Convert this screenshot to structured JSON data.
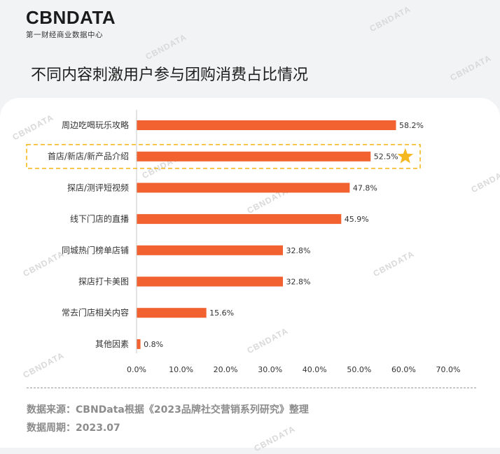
{
  "brand": {
    "logo_text": "CBNDATA",
    "tagline": "第一财经商业数据中心"
  },
  "header": {
    "title": "不同内容刺激用户参与团购消费占比情况"
  },
  "footer": {
    "source": "数据来源：CBNData根据《2023品牌社交营销系列研究》整理",
    "period": "数据周期：2023.07"
  },
  "colors": {
    "bar": "#f26130",
    "highlight": "#f5b91f",
    "axis": "#c8c8c8",
    "text": "#333333"
  },
  "chart_data": {
    "type": "bar",
    "orientation": "horizontal",
    "categories": [
      "周边吃喝玩乐攻略",
      "首店/新店/新产品介绍",
      "探店/测评短视频",
      "线下门店的直播",
      "同城热门榜单店铺",
      "探店打卡美图",
      "常去门店相关内容",
      "其他因素"
    ],
    "values": [
      58.2,
      52.5,
      47.8,
      45.9,
      32.8,
      32.8,
      15.6,
      0.8
    ],
    "value_labels": [
      "58.2%",
      "52.5%",
      "47.8%",
      "45.9%",
      "32.8%",
      "32.8%",
      "15.6%",
      "0.8%"
    ],
    "xlim": [
      0,
      70
    ],
    "x_ticks": [
      0,
      10,
      20,
      30,
      40,
      50,
      60,
      70
    ],
    "x_tick_labels": [
      "0.0%",
      "10.0%",
      "20.0%",
      "30.0%",
      "40.0%",
      "50.0%",
      "60.0%",
      "70.0%"
    ],
    "highlighted_category": "首店/新店/新产品介绍",
    "highlight_icon": "star-icon",
    "grid": false,
    "legend": "none"
  }
}
